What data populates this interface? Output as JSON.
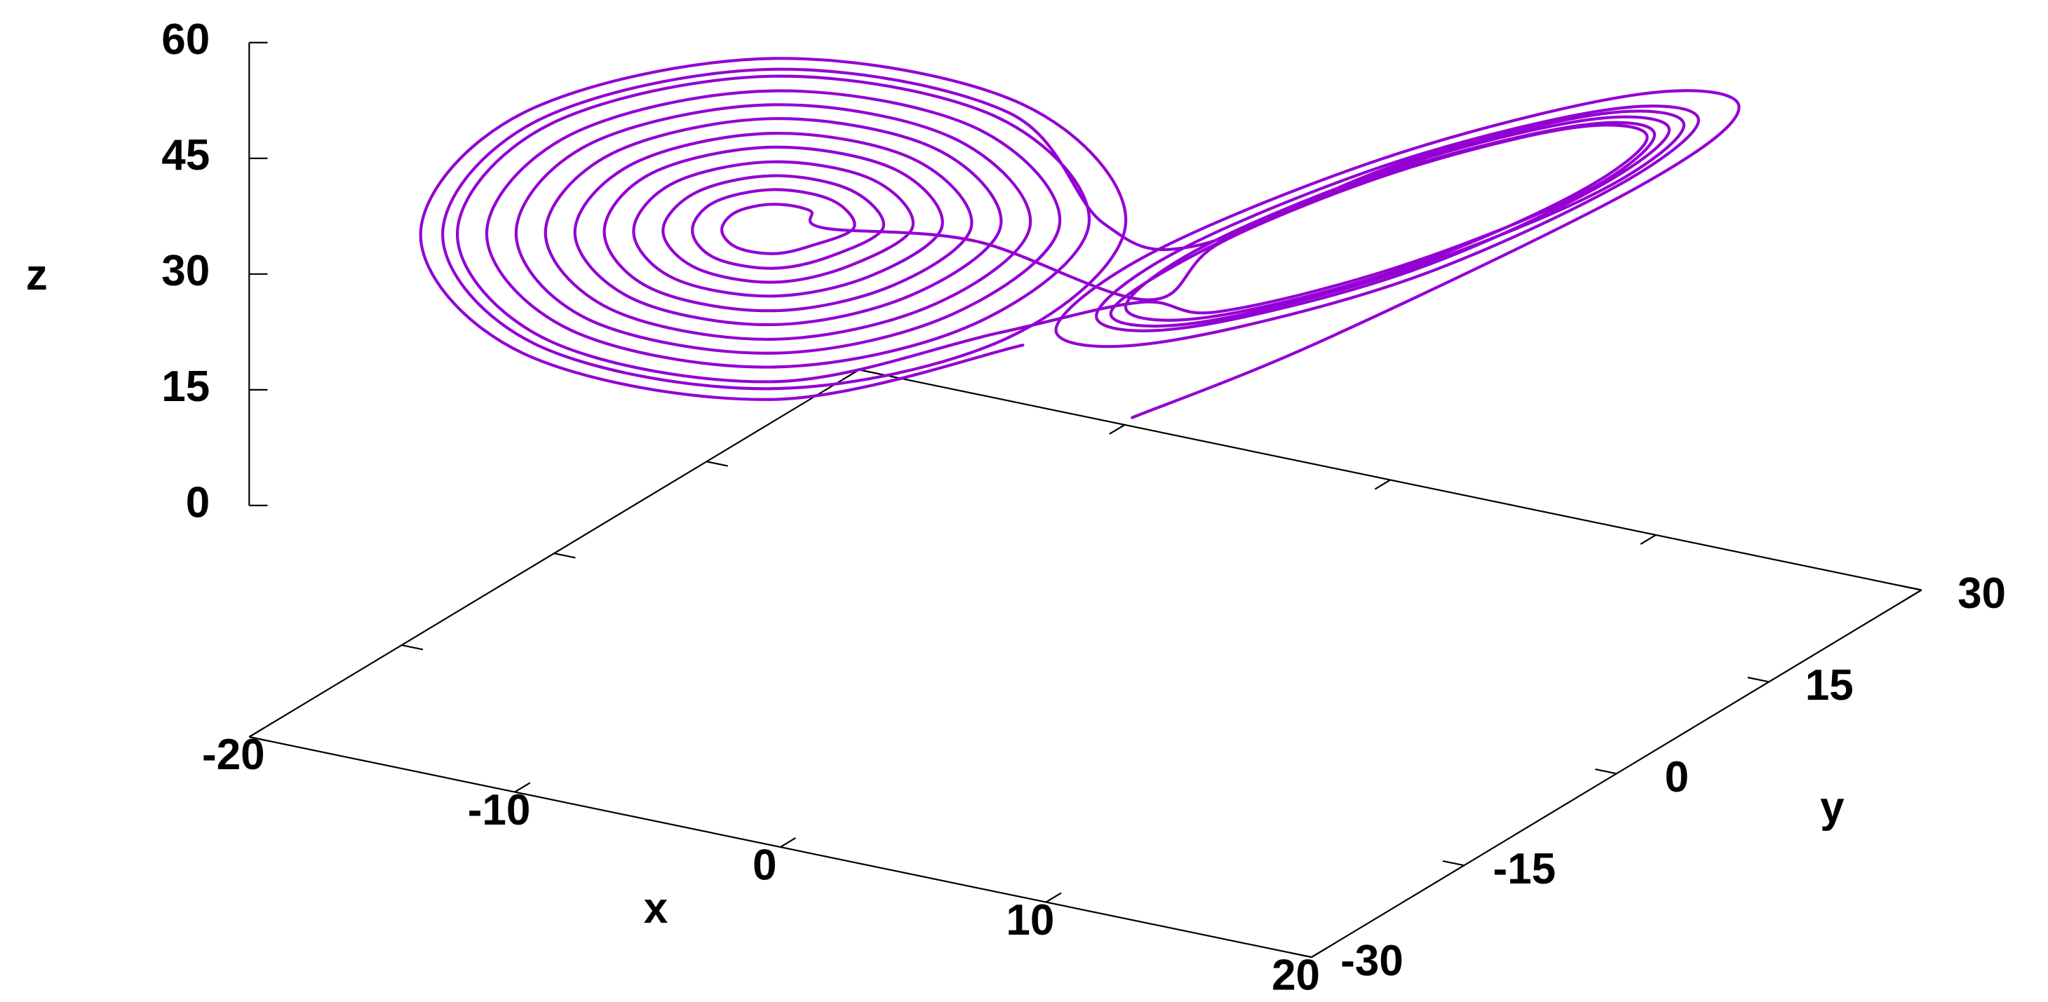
{
  "chart_data": {
    "type": "line3d",
    "xlabel": "x",
    "ylabel": "y",
    "zlabel": "z",
    "xlim": [
      -20,
      20
    ],
    "xticks": [
      -20,
      -10,
      0,
      10,
      20
    ],
    "ylim": [
      -30,
      30
    ],
    "yticks": [
      -30,
      -15,
      0,
      15,
      30
    ],
    "zlim": [
      0,
      60
    ],
    "zticks": [
      0,
      15,
      30,
      45,
      60
    ],
    "series": [
      {
        "color": "#9400d3",
        "x": [
          1,
          6,
          15.1,
          17.8,
          15.1,
          8.5,
          1.9,
          -0.8,
          1.9,
          8.5,
          14.3,
          16.7,
          14.3,
          8.5,
          2.7,
          0.3,
          2.7,
          8.5,
          13.7,
          15.9,
          13.7,
          8.5,
          3.3,
          1.1,
          3.3,
          8.5,
          13.3,
          15.3,
          13.3,
          8.5,
          3.7,
          1.7,
          -3,
          -7.1,
          -7.5,
          -8.5,
          -9.5,
          -9.9,
          -9.5,
          -8.5,
          -7.5,
          -6.3,
          -6.9,
          -8.5,
          -10.1,
          -10.7,
          -10.1,
          -8.5,
          -6.9,
          -5.5,
          -6.4,
          -8.5,
          -10.6,
          -11.5,
          -10.6,
          -8.5,
          -6.4,
          -4.7,
          -5.8,
          -8.5,
          -11.2,
          -12.3,
          -11.2,
          -8.5,
          -5.8,
          -3.9,
          -5.2,
          -8.5,
          -11.8,
          -13.1,
          -11.8,
          -8.5,
          -5.2,
          -3.1,
          -4.7,
          -8.5,
          -12.3,
          -13.9,
          -12.3,
          -8.5,
          -4.7,
          -2.3,
          -4.1,
          -8.5,
          -12.9,
          -14.7,
          -12.9,
          -8.5,
          -4.1,
          -1.5,
          -3.6,
          -8.5,
          -13.5,
          -15.5,
          -13.5,
          -8.5,
          -3.6,
          -0.7,
          -3,
          -8.5,
          -14,
          -16.3,
          -14,
          -8.5,
          -3,
          0.1,
          -2.4,
          -8.5,
          -14.6,
          -17.1,
          -14.6,
          -8.5,
          -2.4,
          1.5,
          3.6,
          8.5,
          13.5,
          15.5,
          13.5,
          8.5,
          3.6,
          0.7,
          3,
          8.5,
          14,
          16.3,
          14,
          8.5,
          3,
          0.5,
          -2.1,
          -8.5,
          -14.9,
          -17.5,
          -14.9,
          -8.5,
          -2.1,
          1.1,
          -1.7,
          -8.5,
          -15.3,
          -18.1,
          -15.3,
          -8.5,
          -1.7
        ],
        "y": [
          2,
          8,
          15.1,
          17.8,
          15.1,
          8.5,
          1.9,
          -0.8,
          1.9,
          8.5,
          14.3,
          16.7,
          14.3,
          8.5,
          2.7,
          0.3,
          2.7,
          8.5,
          13.7,
          15.9,
          13.7,
          8.5,
          3.3,
          1.1,
          3.3,
          8.5,
          13.3,
          15.3,
          13.3,
          8.5,
          3.7,
          1.7,
          -3,
          -7.1,
          -7.5,
          -8.5,
          -9.5,
          -9.9,
          -9.5,
          -8.5,
          -7.5,
          -6.3,
          -6.9,
          -8.5,
          -10.1,
          -10.7,
          -10.1,
          -8.5,
          -6.9,
          -5.5,
          -6.4,
          -8.5,
          -10.6,
          -11.5,
          -10.6,
          -8.5,
          -6.4,
          -4.7,
          -5.8,
          -8.5,
          -11.2,
          -12.3,
          -11.2,
          -8.5,
          -5.8,
          -3.9,
          -5.2,
          -8.5,
          -11.8,
          -13.1,
          -11.8,
          -8.5,
          -5.2,
          -3.1,
          -4.7,
          -8.5,
          -12.3,
          -13.9,
          -12.3,
          -8.5,
          -4.7,
          -2.3,
          -4.1,
          -8.5,
          -12.9,
          -14.7,
          -12.9,
          -8.5,
          -4.1,
          -1.5,
          -3.6,
          -8.5,
          -13.5,
          -15.5,
          -13.5,
          -8.5,
          -3.6,
          -0.7,
          -3,
          -8.5,
          -14,
          -16.3,
          -14,
          -8.5,
          -3,
          0.1,
          -2.4,
          -8.5,
          -14.6,
          -17.1,
          -14.6,
          -8.5,
          -2.4,
          1.5,
          3.6,
          8.5,
          13.5,
          15.5,
          13.5,
          8.5,
          3.6,
          0.7,
          3,
          8.5,
          14,
          16.3,
          14,
          8.5,
          3,
          0.5,
          -2.1,
          -8.5,
          -14.9,
          -17.5,
          -14.9,
          -8.5,
          -2.1,
          1.1,
          -1.7,
          -8.5,
          -15.3,
          -18.1,
          -15.3,
          -8.5,
          -1.7
        ],
        "z": [
          1,
          10,
          30.7,
          40.7,
          42.6,
          35.4,
          23.3,
          13.3,
          11.4,
          18.6,
          30.3,
          39.1,
          40.7,
          34.4,
          23.7,
          15,
          13.3,
          19.6,
          30,
          37.9,
          39.4,
          33.7,
          24,
          16.1,
          14.6,
          20.3,
          29.7,
          37,
          38.4,
          33.1,
          24.3,
          17,
          25,
          27,
          29.3,
          30.2,
          29.3,
          27,
          24.7,
          23.8,
          24.7,
          27,
          30.6,
          32.1,
          30.6,
          27,
          23.4,
          21.9,
          23.4,
          27,
          31.9,
          33.9,
          31.9,
          27,
          22.1,
          20.1,
          22.1,
          27,
          33.2,
          35.7,
          33.2,
          27,
          20.8,
          18.3,
          20.8,
          27,
          34.5,
          37.6,
          34.5,
          27,
          19.5,
          16.4,
          19.5,
          27,
          35.8,
          39.4,
          35.8,
          27,
          18.2,
          14.6,
          18.2,
          27,
          37.1,
          41.3,
          37.1,
          27,
          16.9,
          12.7,
          16.9,
          27,
          38.4,
          43.1,
          38.4,
          27,
          15.6,
          10.9,
          15.6,
          27,
          39.7,
          44.9,
          39.7,
          27,
          14.3,
          9.1,
          14.3,
          27,
          41,
          46.8,
          41,
          27,
          13,
          7.2,
          13,
          16.7,
          15.3,
          20.7,
          29.8,
          37.3,
          38.7,
          33.3,
          24.2,
          15.5,
          13.9,
          20,
          30.1,
          38.5,
          40.1,
          34,
          23.9,
          27,
          41.6,
          47.7,
          41.6,
          27,
          12.4,
          6.3,
          12.4,
          27,
          42.6,
          49.1,
          42.6,
          27,
          11.4,
          4.9,
          11.4
        ]
      }
    ]
  }
}
